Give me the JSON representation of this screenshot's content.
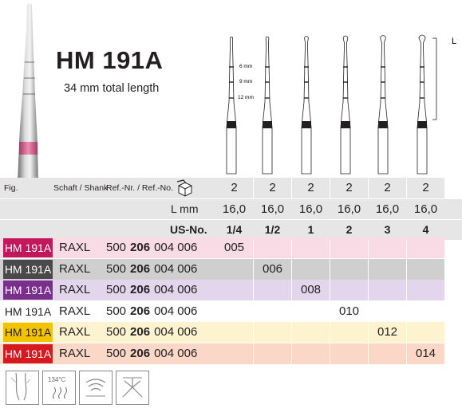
{
  "product": {
    "name": "HM 191A",
    "subtitle": "34 mm total length"
  },
  "diagram": {
    "marks": [
      "6 mm",
      "9 mm",
      "12 mm"
    ],
    "length_label": "L"
  },
  "table": {
    "header": {
      "fig": "Fig.",
      "shank": "Schaft / Shank",
      "ref": "Ref.-Nr. / Ref.-No.",
      "pack_icon": "package-icon"
    },
    "pack_qty": [
      "2",
      "2",
      "2",
      "2",
      "2",
      "2"
    ],
    "length_label": "L mm",
    "lengths": [
      "16,0",
      "16,0",
      "16,0",
      "16,0",
      "16,0",
      "16,0"
    ],
    "us_label": "US-No.",
    "us_numbers": [
      "1/4",
      "1/2",
      "1",
      "2",
      "3",
      "4"
    ],
    "rows": [
      {
        "fig": "HM 191A",
        "shank": "RAXL",
        "ref_pre": "500",
        "ref_bold": "206",
        "ref_post": "004 006",
        "size": "005",
        "col": 0,
        "badge": "#c2185b",
        "badge_text": "#ffffff",
        "tint": "#f8dbe5"
      },
      {
        "fig": "HM 191A",
        "shank": "RAXL",
        "ref_pre": "500",
        "ref_bold": "206",
        "ref_post": "004 006",
        "size": "006",
        "col": 1,
        "badge": "#4a4a4a",
        "badge_text": "#ffffff",
        "tint": "#cfcfcf"
      },
      {
        "fig": "HM 191A",
        "shank": "RAXL",
        "ref_pre": "500",
        "ref_bold": "206",
        "ref_post": "004 006",
        "size": "008",
        "col": 2,
        "badge": "#7a2f8c",
        "badge_text": "#ffffff",
        "tint": "#e3d5ec"
      },
      {
        "fig": "HM 191A",
        "shank": "RAXL",
        "ref_pre": "500",
        "ref_bold": "206",
        "ref_post": "004 006",
        "size": "010",
        "col": 3,
        "badge": "#ffffff",
        "badge_text": "#231f20",
        "tint": "#ffffff"
      },
      {
        "fig": "HM 191A",
        "shank": "RAXL",
        "ref_pre": "500",
        "ref_bold": "206",
        "ref_post": "004 006",
        "size": "012",
        "col": 4,
        "badge": "#f2c400",
        "badge_text": "#231f20",
        "tint": "#fdf3cf"
      },
      {
        "fig": "HM 191A",
        "shank": "RAXL",
        "ref_pre": "500",
        "ref_bold": "206",
        "ref_post": "004 006",
        "size": "014",
        "col": 5,
        "badge": "#d71920",
        "badge_text": "#ffffff",
        "tint": "#fad7c6"
      }
    ]
  },
  "icons": [
    {
      "name": "cutting-icon",
      "label": ""
    },
    {
      "name": "sterilization-icon",
      "label": "134°C"
    },
    {
      "name": "ultrasonic-cleaning-icon",
      "label": ""
    },
    {
      "name": "thermodisinfector-icon",
      "label": ""
    }
  ]
}
